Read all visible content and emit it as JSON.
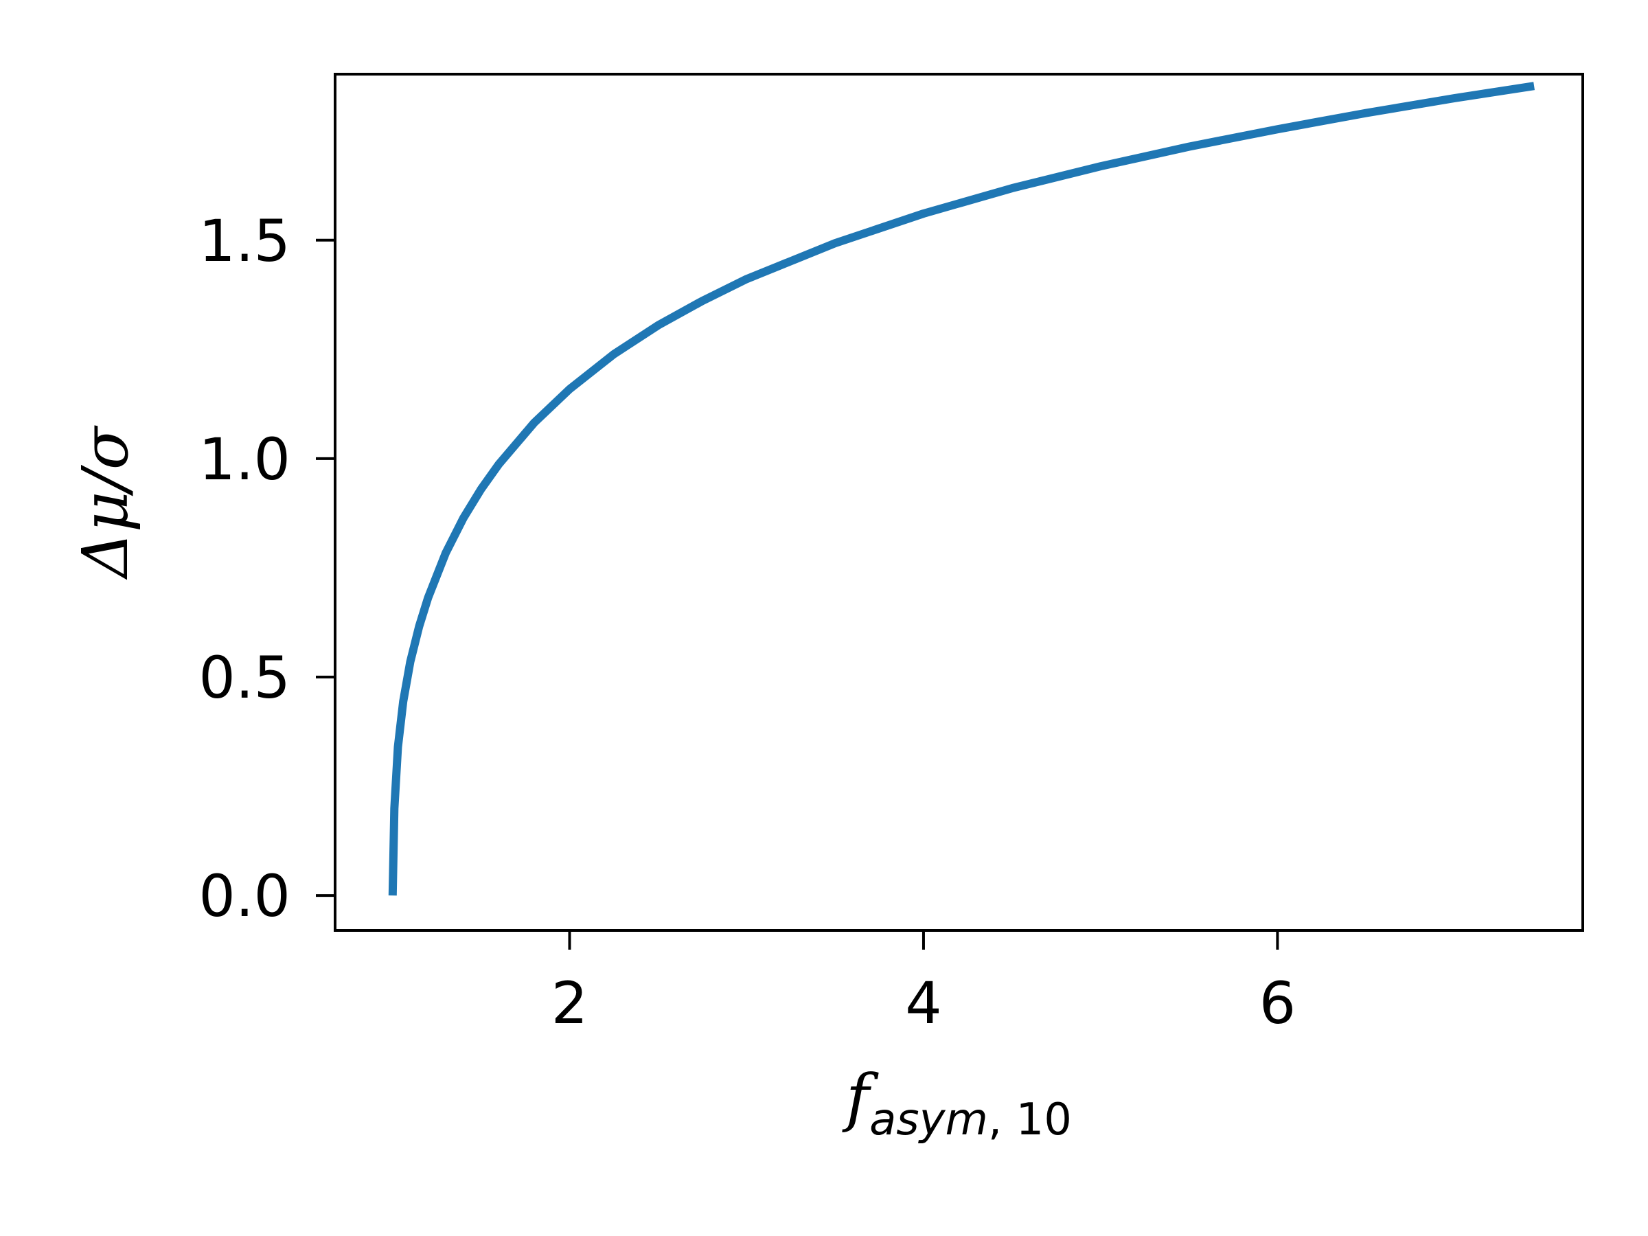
{
  "chart_data": {
    "type": "line",
    "title": "",
    "xlabel": {
      "main": "f",
      "subscript_italic": "asym",
      "subscript_sep": ", ",
      "subscript_num": "10"
    },
    "ylabel": "Δμ/σ",
    "xlim": [
      0.675,
      7.725
    ],
    "ylim": [
      -0.08,
      1.88
    ],
    "x_ticks": [
      2,
      4,
      6
    ],
    "x_tick_labels": [
      "2",
      "4",
      "6"
    ],
    "y_ticks": [
      0.0,
      0.5,
      1.0,
      1.5
    ],
    "y_tick_labels": [
      "0.0",
      "0.5",
      "1.0",
      "1.5"
    ],
    "grid": false,
    "legend": "none",
    "series": [
      {
        "color": "#1f77b4",
        "x": [
          1.0,
          1.01,
          1.03,
          1.06,
          1.1,
          1.15,
          1.2,
          1.3,
          1.4,
          1.5,
          1.6,
          1.8,
          2.0,
          2.25,
          2.5,
          2.75,
          3.0,
          3.5,
          4.0,
          4.5,
          5.0,
          5.5,
          6.0,
          6.5,
          7.0,
          7.45
        ],
        "y": [
          0.0,
          0.199,
          0.34,
          0.444,
          0.535,
          0.616,
          0.681,
          0.784,
          0.864,
          0.93,
          0.987,
          1.082,
          1.159,
          1.239,
          1.305,
          1.361,
          1.411,
          1.493,
          1.561,
          1.619,
          1.669,
          1.714,
          1.754,
          1.791,
          1.825,
          1.853
        ]
      }
    ]
  }
}
